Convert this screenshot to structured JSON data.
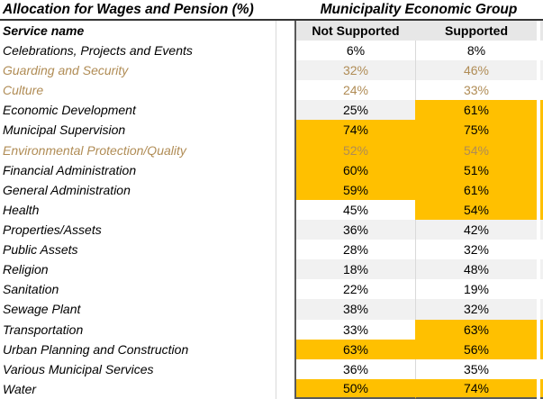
{
  "table": {
    "title": "Allocation for Wages and Pension (%)",
    "group_title": "Municipality Economic Group",
    "headers": {
      "service": "Service name",
      "not_supported": "Not Supported",
      "supported": "Supported"
    },
    "rows": [
      {
        "service": "Celebrations, Projects and Events",
        "not_supported": "6%",
        "supported": "8%",
        "brown": false,
        "ns_highlight": false,
        "s_highlight": false
      },
      {
        "service": "Guarding and Security",
        "not_supported": "32%",
        "supported": "46%",
        "brown": true,
        "ns_highlight": false,
        "s_highlight": false
      },
      {
        "service": "Culture",
        "not_supported": "24%",
        "supported": "33%",
        "brown": true,
        "ns_highlight": false,
        "s_highlight": false
      },
      {
        "service": "Economic Development",
        "not_supported": "25%",
        "supported": "61%",
        "brown": false,
        "ns_highlight": false,
        "s_highlight": true
      },
      {
        "service": "Municipal Supervision",
        "not_supported": "74%",
        "supported": "75%",
        "brown": false,
        "ns_highlight": true,
        "s_highlight": true
      },
      {
        "service": "Environmental Protection/Quality",
        "not_supported": "52%",
        "supported": "54%",
        "brown": true,
        "ns_highlight": true,
        "s_highlight": true
      },
      {
        "service": "Financial Administration",
        "not_supported": "60%",
        "supported": "51%",
        "brown": false,
        "ns_highlight": true,
        "s_highlight": true
      },
      {
        "service": "General Administration",
        "not_supported": "59%",
        "supported": "61%",
        "brown": false,
        "ns_highlight": true,
        "s_highlight": true
      },
      {
        "service": "Health",
        "not_supported": "45%",
        "supported": "54%",
        "brown": false,
        "ns_highlight": false,
        "s_highlight": true
      },
      {
        "service": "Properties/Assets",
        "not_supported": "36%",
        "supported": "42%",
        "brown": false,
        "ns_highlight": false,
        "s_highlight": false
      },
      {
        "service": "Public Assets",
        "not_supported": "28%",
        "supported": "32%",
        "brown": false,
        "ns_highlight": false,
        "s_highlight": false
      },
      {
        "service": "Religion",
        "not_supported": "18%",
        "supported": "48%",
        "brown": false,
        "ns_highlight": false,
        "s_highlight": false
      },
      {
        "service": "Sanitation",
        "not_supported": "22%",
        "supported": "19%",
        "brown": false,
        "ns_highlight": false,
        "s_highlight": false
      },
      {
        "service": "Sewage Plant",
        "not_supported": "38%",
        "supported": "32%",
        "brown": false,
        "ns_highlight": false,
        "s_highlight": false
      },
      {
        "service": "Transportation",
        "not_supported": "33%",
        "supported": "63%",
        "brown": false,
        "ns_highlight": false,
        "s_highlight": true
      },
      {
        "service": "Urban Planning and Construction",
        "not_supported": "63%",
        "supported": "56%",
        "brown": false,
        "ns_highlight": true,
        "s_highlight": true
      },
      {
        "service": "Various Municipal Services",
        "not_supported": "36%",
        "supported": "35%",
        "brown": false,
        "ns_highlight": false,
        "s_highlight": false
      },
      {
        "service": "Water",
        "not_supported": "50%",
        "supported": "74%",
        "brown": false,
        "ns_highlight": true,
        "s_highlight": true
      }
    ]
  },
  "colors": {
    "highlight": "#FFC000",
    "brown_text": "#B08C55",
    "alt_row": "#F1F1F1",
    "header_bg": "#E7E7E7",
    "dark_divider": "#595959"
  },
  "chart_data": {
    "type": "table",
    "title": "Allocation for Wages and Pension (%)",
    "group_header": "Municipality Economic Group",
    "columns": [
      "Service name",
      "Not Supported",
      "Supported"
    ],
    "unit": "%",
    "rows": [
      [
        "Celebrations, Projects and Events",
        6,
        8
      ],
      [
        "Guarding and Security",
        32,
        46
      ],
      [
        "Culture",
        24,
        33
      ],
      [
        "Economic Development",
        25,
        61
      ],
      [
        "Municipal Supervision",
        74,
        75
      ],
      [
        "Environmental Protection/Quality",
        52,
        54
      ],
      [
        "Financial Administration",
        60,
        51
      ],
      [
        "General Administration",
        59,
        61
      ],
      [
        "Health",
        45,
        54
      ],
      [
        "Properties/Assets",
        36,
        42
      ],
      [
        "Public Assets",
        28,
        32
      ],
      [
        "Religion",
        18,
        48
      ],
      [
        "Sanitation",
        22,
        19
      ],
      [
        "Sewage Plant",
        38,
        32
      ],
      [
        "Transportation",
        33,
        63
      ],
      [
        "Urban Planning and Construction",
        63,
        56
      ],
      [
        "Various Municipal Services",
        36,
        35
      ],
      [
        "Water",
        50,
        74
      ]
    ],
    "highlight_color": "#FFC000",
    "highlighted_not_supported": [
      "Municipal Supervision",
      "Environmental Protection/Quality",
      "Financial Administration",
      "General Administration",
      "Urban Planning and Construction",
      "Water"
    ],
    "highlighted_supported": [
      "Economic Development",
      "Municipal Supervision",
      "Environmental Protection/Quality",
      "Financial Administration",
      "General Administration",
      "Health",
      "Transportation",
      "Urban Planning and Construction",
      "Water"
    ],
    "brown_text_rows": [
      "Guarding and Security",
      "Culture",
      "Environmental Protection/Quality"
    ]
  }
}
